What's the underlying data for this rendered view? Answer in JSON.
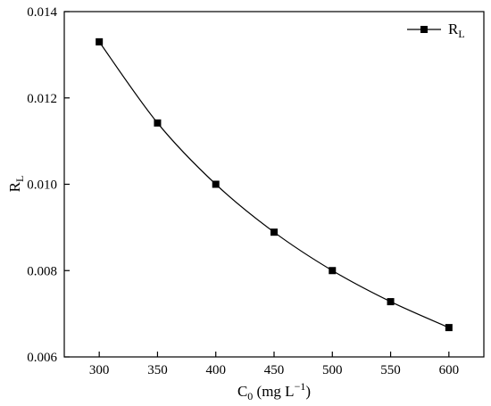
{
  "chart_data": {
    "type": "line",
    "x": [
      300,
      350,
      400,
      450,
      500,
      550,
      600
    ],
    "series": [
      {
        "name": "R_L",
        "values": [
          0.0133,
          0.01142,
          0.01,
          0.00889,
          0.008,
          0.00728,
          0.00668
        ],
        "marker": "square",
        "color": "#000000"
      }
    ],
    "xlabel": {
      "main": "C",
      "sub": "0",
      "after_sub": " (mg L",
      "sup": "−1",
      "end": ")"
    },
    "ylabel": {
      "main": "R",
      "sub": "L"
    },
    "legend": {
      "main": "R",
      "sub": "L",
      "position": "top-right"
    },
    "xlim": [
      270,
      630
    ],
    "ylim": [
      0.006,
      0.014
    ],
    "xticks": [
      300,
      350,
      400,
      450,
      500,
      550,
      600
    ],
    "xtick_labels": [
      "300",
      "350",
      "400",
      "450",
      "500",
      "550",
      "600"
    ],
    "yticks": [
      0.006,
      0.008,
      0.01,
      0.012,
      0.014
    ],
    "ytick_labels": [
      "0.006",
      "0.008",
      "0.010",
      "0.012",
      "0.014"
    ],
    "grid": false
  }
}
